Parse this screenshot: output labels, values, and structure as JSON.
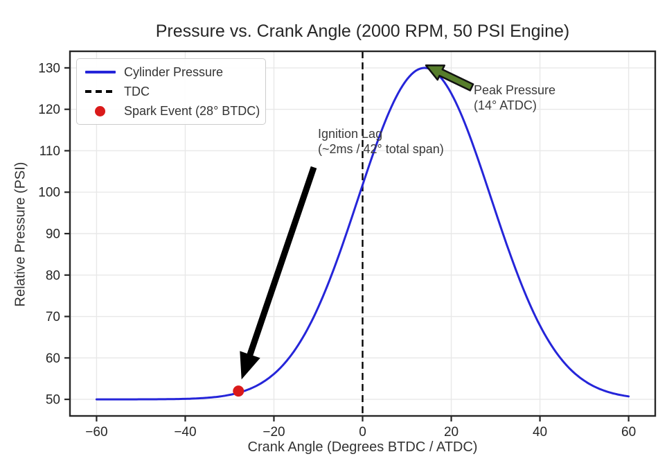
{
  "chart_data": {
    "type": "line",
    "title": "Pressure vs. Crank Angle (2000 RPM, 50 PSI Engine)",
    "xlabel": "Crank Angle (Degrees BTDC / ATDC)",
    "ylabel": "Relative Pressure (PSI)",
    "xlim": [
      -66,
      66
    ],
    "ylim": [
      46,
      134
    ],
    "x_ticks": [
      -60,
      -40,
      -20,
      0,
      20,
      40,
      60
    ],
    "x_tick_labels": [
      "−60",
      "−40",
      "−20",
      "0",
      "20",
      "40",
      "60"
    ],
    "y_ticks": [
      50,
      60,
      70,
      80,
      90,
      100,
      110,
      120,
      130
    ],
    "y_tick_labels": [
      "50",
      "60",
      "70",
      "80",
      "90",
      "100",
      "110",
      "120",
      "130"
    ],
    "grid": true,
    "grid_color": "#e8e8e8",
    "spine_color": "#262626",
    "legend": {
      "position": "upper left",
      "items": [
        {
          "label": "Cylinder Pressure",
          "swatch": "line",
          "color": "#2525d9"
        },
        {
          "label": "TDC",
          "swatch": "dashed-line",
          "color": "#000000"
        },
        {
          "label": "Spark Event (28° BTDC)",
          "swatch": "dot",
          "color": "#da1a1a"
        }
      ]
    },
    "series": [
      {
        "name": "Cylinder Pressure",
        "color": "#2525d9",
        "line_width": 3,
        "model": {
          "type": "gaussian",
          "baseline": 50,
          "amplitude": 80,
          "center": 14,
          "sigma": 15,
          "x_start": -60,
          "x_end": 60
        },
        "points": [
          [
            -60,
            50.0
          ],
          [
            -58,
            50.0
          ],
          [
            -56,
            50.0
          ],
          [
            -54,
            50.0
          ],
          [
            -52,
            50.0
          ],
          [
            -50,
            50.0
          ],
          [
            -48,
            50.0
          ],
          [
            -46,
            50.0
          ],
          [
            -44,
            50.0
          ],
          [
            -42,
            50.1
          ],
          [
            -40,
            50.1
          ],
          [
            -38,
            50.2
          ],
          [
            -36,
            50.3
          ],
          [
            -34,
            50.5
          ],
          [
            -32,
            50.7
          ],
          [
            -30,
            51.1
          ],
          [
            -28,
            51.6
          ],
          [
            -26,
            52.3
          ],
          [
            -24,
            53.2
          ],
          [
            -22,
            54.5
          ],
          [
            -20,
            56.1
          ],
          [
            -18,
            58.2
          ],
          [
            -16,
            60.8
          ],
          [
            -14,
            64.0
          ],
          [
            -12,
            67.8
          ],
          [
            -10,
            72.2
          ],
          [
            -8,
            77.3
          ],
          [
            -6,
            82.9
          ],
          [
            -4,
            88.9
          ],
          [
            -2,
            95.3
          ],
          [
            0,
            101.7
          ],
          [
            2,
            108.1
          ],
          [
            4,
            114.1
          ],
          [
            6,
            119.4
          ],
          [
            8,
            123.8
          ],
          [
            10,
            127.2
          ],
          [
            12,
            129.3
          ],
          [
            14,
            130.0
          ],
          [
            16,
            129.3
          ],
          [
            18,
            127.2
          ],
          [
            20,
            123.8
          ],
          [
            22,
            119.4
          ],
          [
            24,
            114.1
          ],
          [
            26,
            108.1
          ],
          [
            28,
            101.7
          ],
          [
            30,
            95.3
          ],
          [
            32,
            88.9
          ],
          [
            34,
            82.9
          ],
          [
            36,
            77.3
          ],
          [
            38,
            72.2
          ],
          [
            40,
            67.8
          ],
          [
            42,
            64.0
          ],
          [
            44,
            60.8
          ],
          [
            46,
            58.2
          ],
          [
            48,
            56.1
          ],
          [
            50,
            54.5
          ],
          [
            52,
            53.2
          ],
          [
            54,
            52.3
          ],
          [
            56,
            51.6
          ],
          [
            58,
            51.1
          ],
          [
            60,
            50.7
          ]
        ]
      }
    ],
    "markers": [
      {
        "label": "Spark Event (28° BTDC)",
        "x": -28,
        "y": 52,
        "color": "#da1a1a",
        "radius": 8
      }
    ],
    "vlines": [
      {
        "label": "TDC",
        "x": 0,
        "color": "#000000",
        "style": "dashed",
        "width": 2.4
      }
    ],
    "annotations": [
      {
        "id": "ignition-lag",
        "lines": [
          "Ignition Lag",
          "(~2ms / 42° total span)"
        ],
        "arrow": {
          "from_xy": [
            -11,
            106
          ],
          "to_xy": [
            -27.3,
            54.8
          ],
          "fill": "#000000",
          "stroke": "",
          "shaft_width": 9,
          "head_width": 31,
          "head_length": 38
        }
      },
      {
        "id": "peak-pressure",
        "lines": [
          "Peak Pressure",
          "(14° ATDC)"
        ],
        "arrow": {
          "from_xy": [
            24.6,
            125.3
          ],
          "to_xy": [
            14.3,
            130.6
          ],
          "fill": "#567d2b",
          "stroke": "#111111",
          "shaft_width": 10,
          "head_width": 23,
          "head_length": 24
        }
      }
    ]
  }
}
